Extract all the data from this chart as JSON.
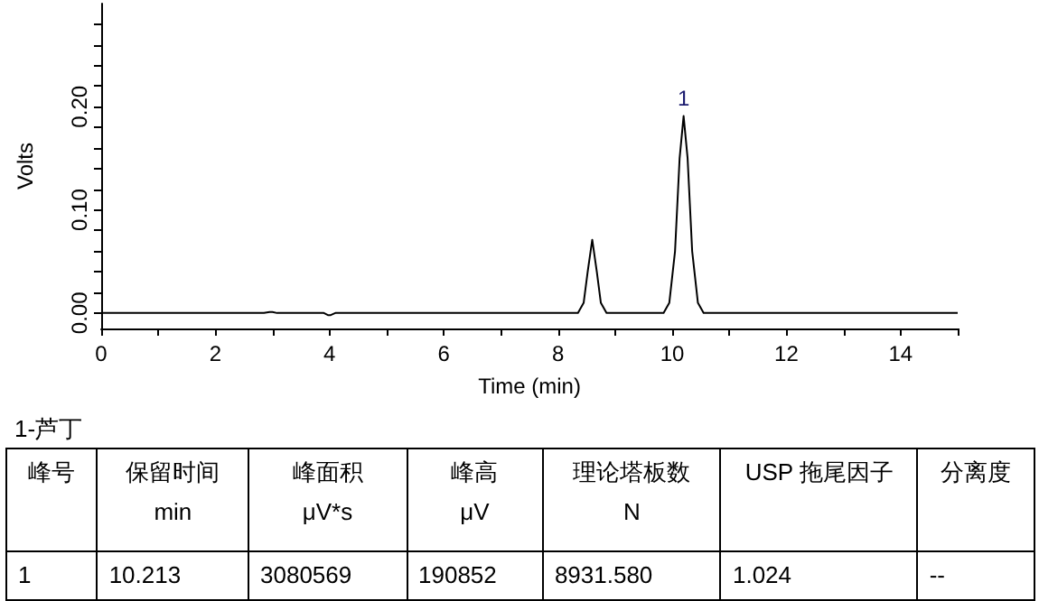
{
  "chart_data": [
    {
      "type": "line",
      "xlabel": "Time (min)",
      "ylabel": "Volts",
      "color": "#000000",
      "line_style": "solid",
      "x": [
        0,
        2.85,
        2.95,
        3.0,
        3.08,
        3.9,
        3.97,
        4.02,
        4.1,
        8.35,
        8.45,
        8.52,
        8.6,
        8.68,
        8.75,
        8.85,
        9.85,
        9.95,
        10.05,
        10.13,
        10.2,
        10.27,
        10.35,
        10.45,
        10.55,
        15
      ],
      "values": [
        0,
        0,
        0.001,
        0.001,
        0,
        0,
        -0.002,
        -0.002,
        0,
        0,
        0.01,
        0.04,
        0.071,
        0.04,
        0.01,
        0,
        0,
        0.01,
        0.06,
        0.15,
        0.191,
        0.15,
        0.06,
        0.01,
        0,
        0
      ],
      "xlim": [
        0,
        15
      ],
      "xticks": [
        0,
        {
          "value": 1,
          "label": null
        },
        2,
        {
          "value": 3,
          "label": null
        },
        4,
        {
          "value": 5,
          "label": null
        },
        6,
        {
          "value": 7,
          "label": null
        },
        8,
        {
          "value": 9,
          "label": null
        },
        10,
        {
          "value": 11,
          "label": null
        },
        12,
        {
          "value": 13,
          "label": null
        },
        14,
        {
          "value": 15,
          "label": null
        }
      ],
      "ylim": [
        -0.015,
        0.3
      ],
      "yticks": [
        {
          "value": 0,
          "label": "0.00"
        },
        {
          "value": 0.02,
          "label": null
        },
        {
          "value": 0.04,
          "label": null
        },
        {
          "value": 0.06,
          "label": null
        },
        {
          "value": 0.08,
          "label": null
        },
        {
          "value": 0.1,
          "label": "0.10"
        },
        {
          "value": 0.12,
          "label": null
        },
        {
          "value": 0.14,
          "label": null
        },
        {
          "value": 0.16,
          "label": null
        },
        {
          "value": 0.18,
          "label": null
        },
        {
          "value": 0.2,
          "label": "0.20"
        },
        {
          "value": 0.22,
          "label": null
        },
        {
          "value": 0.24,
          "label": null
        },
        {
          "value": 0.26,
          "label": null
        },
        {
          "value": 0.28,
          "label": null
        }
      ],
      "annotations": [
        {
          "text": "1",
          "x": 10.2,
          "y": 0.191
        }
      ]
    },
    {
      "type": "other",
      "title": "1-芦丁",
      "annotations": [
        "峰号",
        "保留时间\nmin",
        "峰面积\nμV*s",
        "峰高\nμV",
        "理论塔板数\nN",
        "USP 拖尾因子",
        "分离度",
        "1",
        "10.213",
        "3080569",
        "190852",
        "8931.580",
        "1.024",
        "--"
      ]
    }
  ]
}
